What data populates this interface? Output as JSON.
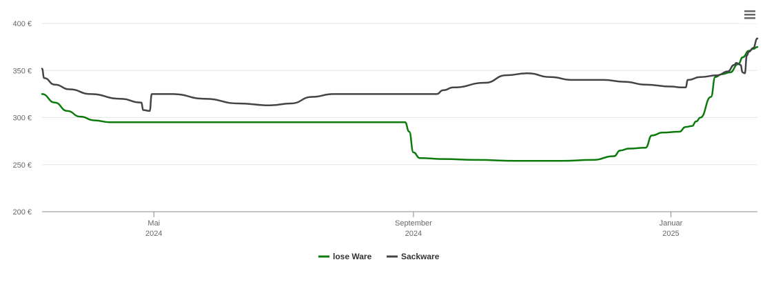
{
  "chart_data": {
    "type": "line",
    "title": "",
    "xlabel": "",
    "ylabel": "",
    "ylim": [
      200,
      400
    ],
    "yticks": [
      {
        "value": 200,
        "label": "200 €"
      },
      {
        "value": 250,
        "label": "250 €"
      },
      {
        "value": 300,
        "label": "300 €"
      },
      {
        "value": 350,
        "label": "350 €"
      },
      {
        "value": 400,
        "label": "400 €"
      }
    ],
    "xlim": [
      "2024-03-09",
      "2025-02-11"
    ],
    "xticks": [
      {
        "date": "2024-05-01",
        "month": "Mai",
        "year": "2024"
      },
      {
        "date": "2024-09-01",
        "month": "September",
        "year": "2024"
      },
      {
        "date": "2025-01-01",
        "month": "Januar",
        "year": "2025"
      }
    ],
    "grid": true,
    "legend_position": "bottom-center",
    "series": [
      {
        "name": "lose Ware",
        "color": "#0a7a0a",
        "points": [
          [
            "2024-03-09",
            325
          ],
          [
            "2024-03-15",
            316
          ],
          [
            "2024-03-21",
            307
          ],
          [
            "2024-03-27",
            301
          ],
          [
            "2024-04-03",
            297
          ],
          [
            "2024-04-10",
            295
          ],
          [
            "2024-05-01",
            295
          ],
          [
            "2024-06-01",
            295
          ],
          [
            "2024-07-01",
            295
          ],
          [
            "2024-08-01",
            295
          ],
          [
            "2024-08-28",
            295
          ],
          [
            "2024-08-30",
            285
          ],
          [
            "2024-09-01",
            263
          ],
          [
            "2024-09-04",
            257
          ],
          [
            "2024-09-15",
            256
          ],
          [
            "2024-10-01",
            255
          ],
          [
            "2024-10-20",
            254
          ],
          [
            "2024-11-10",
            254
          ],
          [
            "2024-11-25",
            255
          ],
          [
            "2024-12-05",
            259
          ],
          [
            "2024-12-08",
            265
          ],
          [
            "2024-12-12",
            267
          ],
          [
            "2024-12-20",
            268
          ],
          [
            "2024-12-23",
            281
          ],
          [
            "2024-12-28",
            284
          ],
          [
            "2025-01-05",
            285
          ],
          [
            "2025-01-08",
            290
          ],
          [
            "2025-01-11",
            291
          ],
          [
            "2025-01-13",
            296
          ],
          [
            "2025-01-15",
            300
          ],
          [
            "2025-01-20",
            322
          ],
          [
            "2025-01-22",
            343
          ],
          [
            "2025-01-25",
            346
          ],
          [
            "2025-01-29",
            348
          ],
          [
            "2025-02-02",
            357
          ],
          [
            "2025-02-04",
            364
          ],
          [
            "2025-02-07",
            371
          ],
          [
            "2025-02-09",
            373
          ],
          [
            "2025-02-11",
            375
          ]
        ]
      },
      {
        "name": "Sackware",
        "color": "#434348",
        "points": [
          [
            "2024-03-09",
            352
          ],
          [
            "2024-03-10",
            342
          ],
          [
            "2024-03-15",
            335
          ],
          [
            "2024-03-22",
            330
          ],
          [
            "2024-04-01",
            325
          ],
          [
            "2024-04-15",
            320
          ],
          [
            "2024-04-25",
            316
          ],
          [
            "2024-04-26",
            308
          ],
          [
            "2024-04-29",
            307
          ],
          [
            "2024-04-30",
            325
          ],
          [
            "2024-05-10",
            325
          ],
          [
            "2024-05-25",
            320
          ],
          [
            "2024-06-10",
            315
          ],
          [
            "2024-06-25",
            313
          ],
          [
            "2024-07-05",
            315
          ],
          [
            "2024-07-15",
            322
          ],
          [
            "2024-07-25",
            325
          ],
          [
            "2024-08-15",
            325
          ],
          [
            "2024-09-01",
            325
          ],
          [
            "2024-09-12",
            325
          ],
          [
            "2024-09-15",
            329
          ],
          [
            "2024-09-20",
            332
          ],
          [
            "2024-10-05",
            337
          ],
          [
            "2024-10-15",
            345
          ],
          [
            "2024-10-25",
            347
          ],
          [
            "2024-11-05",
            343
          ],
          [
            "2024-11-15",
            340
          ],
          [
            "2024-11-30",
            340
          ],
          [
            "2024-12-10",
            338
          ],
          [
            "2024-12-20",
            335
          ],
          [
            "2025-01-01",
            333
          ],
          [
            "2025-01-06",
            332
          ],
          [
            "2025-01-08",
            332
          ],
          [
            "2025-01-09",
            340
          ],
          [
            "2025-01-15",
            343
          ],
          [
            "2025-01-23",
            345
          ],
          [
            "2025-01-28",
            349
          ],
          [
            "2025-01-31",
            356
          ],
          [
            "2025-02-01",
            358
          ],
          [
            "2025-02-03",
            356
          ],
          [
            "2025-02-04",
            348
          ],
          [
            "2025-02-05",
            347
          ],
          [
            "2025-02-06",
            366
          ],
          [
            "2025-02-07",
            370
          ],
          [
            "2025-02-09",
            374
          ],
          [
            "2025-02-11",
            384
          ]
        ]
      }
    ]
  },
  "menu": {
    "icon": "hamburger-menu-icon"
  }
}
